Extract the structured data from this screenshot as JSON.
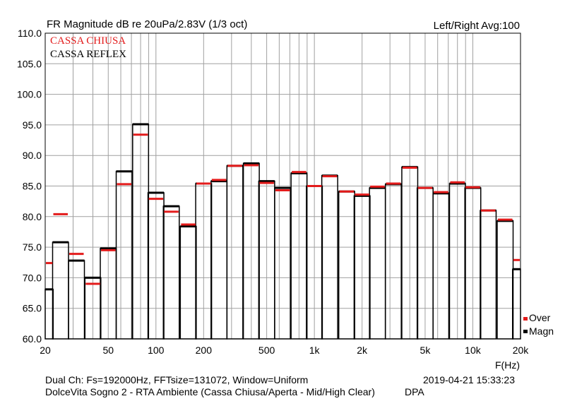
{
  "header": {
    "title": "FR Magnitude dB re 20uPa/2.83V (1/3 oct)",
    "right": "Left/Right  Avg:100"
  },
  "footer": {
    "line1_left": "Dual Ch: Fs=192000Hz, FFTsize=131072, Window=Uniform",
    "line1_right": "2019-04-21  15:33:23",
    "line2_left": "DolceVita Sogno 2 - RTA Ambiente (Cassa Chiusa/Aperta - Mid/High Clear)",
    "line2_right": "DPA"
  },
  "side_legend": {
    "over": "Over",
    "magn": "Magn"
  },
  "colors": {
    "closed": "#e31b1b",
    "reflex": "#000000",
    "grid": "#a0a0a0"
  },
  "chart_data": {
    "type": "bar",
    "title": "FR Magnitude dB re 20uPa/2.83V (1/3 oct)",
    "xlabel": "F(Hz)",
    "ylabel": "",
    "x_scale": "log",
    "xlim": [
      20,
      20000
    ],
    "ylim": [
      60,
      110
    ],
    "grid": true,
    "legend_placement": "top-left",
    "x_tick_labels": [
      "20",
      "50",
      "100",
      "200",
      "500",
      "1k",
      "2k",
      "5k",
      "10k",
      "20k"
    ],
    "y_tick_labels": [
      "60.0",
      "65.0",
      "70.0",
      "75.0",
      "80.0",
      "85.0",
      "90.0",
      "95.0",
      "100.0",
      "105.0",
      "110.0"
    ],
    "categories": [
      "20",
      "25",
      "31.5",
      "40",
      "50",
      "63",
      "80",
      "100",
      "125",
      "160",
      "200",
      "250",
      "315",
      "400",
      "500",
      "630",
      "800",
      "1k",
      "1.25k",
      "1.6k",
      "2k",
      "2.5k",
      "3.15k",
      "4k",
      "5k",
      "6.3k",
      "8k",
      "10k",
      "12.5k",
      "16k",
      "20k"
    ],
    "series": [
      {
        "name": "CASSA CHIUSA",
        "values": [
          72.4,
          80.4,
          73.9,
          69.0,
          74.5,
          85.3,
          93.4,
          82.9,
          80.8,
          78.7,
          85.4,
          86.0,
          88.3,
          88.4,
          85.5,
          84.3,
          87.3,
          85.0,
          86.6,
          84.1,
          83.6,
          84.9,
          85.4,
          88.0,
          84.7,
          84.0,
          85.6,
          84.8,
          81.0,
          79.5,
          72.9
        ]
      },
      {
        "name": "CASSA REFLEX",
        "values": [
          68.1,
          75.8,
          72.8,
          70.0,
          74.8,
          87.4,
          95.1,
          83.9,
          81.7,
          78.4,
          85.4,
          85.8,
          88.3,
          88.7,
          85.8,
          84.7,
          87.1,
          85.0,
          86.7,
          84.1,
          83.4,
          84.7,
          85.3,
          88.1,
          84.7,
          83.8,
          85.4,
          84.7,
          81.0,
          79.3,
          71.4
        ]
      }
    ]
  }
}
